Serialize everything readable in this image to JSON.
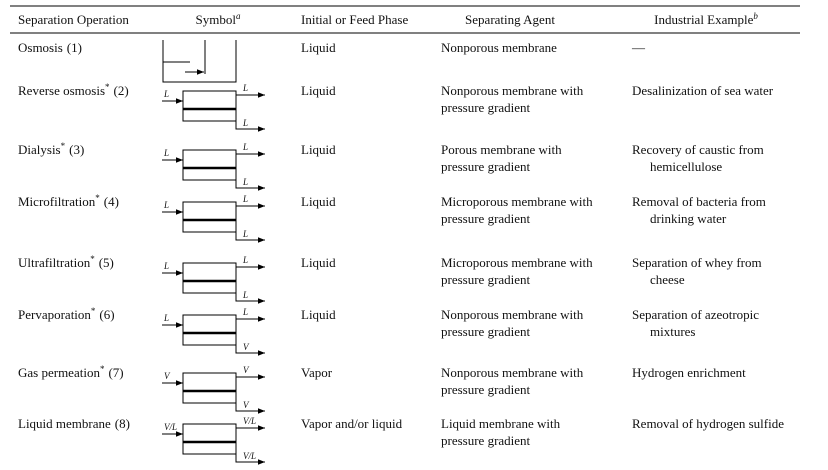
{
  "table": {
    "header": [
      {
        "text": "Separation Operation"
      },
      {
        "text": "Symbol",
        "note": "a"
      },
      {
        "text": "Initial or Feed Phase"
      },
      {
        "text": "Separating Agent"
      },
      {
        "text": "Industrial Example",
        "note": "b"
      }
    ],
    "rows": [
      {
        "operation": "Osmosis",
        "number": "(1)",
        "phase": "Liquid",
        "agent": [
          "Nonporous membrane"
        ],
        "example": [
          "—"
        ]
      },
      {
        "operation": "Reverse osmosis",
        "sup": "*",
        "number": "(2)",
        "symbol": {
          "feed": "L",
          "retentate": "L",
          "permeate": "L"
        },
        "phase": "Liquid",
        "agent": [
          "Nonporous membrane with",
          "pressure gradient"
        ],
        "example": [
          "Desalinization of sea water"
        ]
      },
      {
        "operation": "Dialysis",
        "sup": "*",
        "number": "(3)",
        "symbol": {
          "feed": "L",
          "retentate": "L",
          "permeate": "L"
        },
        "phase": "Liquid",
        "agent": [
          "Porous membrane with",
          "pressure gradient"
        ],
        "example": [
          "Recovery of caustic from",
          "hemicellulose"
        ]
      },
      {
        "operation": "Microfiltration",
        "sup": "*",
        "number": "(4)",
        "symbol": {
          "feed": "L",
          "retentate": "L",
          "permeate": "L"
        },
        "phase": "Liquid",
        "agent": [
          "Microporous membrane with",
          "pressure gradient"
        ],
        "example": [
          "Removal of bacteria from",
          "drinking water"
        ]
      },
      {
        "operation": "Ultrafiltration",
        "sup": "*",
        "number": "(5)",
        "symbol": {
          "feed": "L",
          "retentate": "L",
          "permeate": "L"
        },
        "phase": "Liquid",
        "agent": [
          "Microporous membrane with",
          "pressure gradient"
        ],
        "example": [
          "Separation of whey from",
          "cheese"
        ]
      },
      {
        "operation": "Pervaporation",
        "sup": "*",
        "number": "(6)",
        "symbol": {
          "feed": "L",
          "retentate": "L",
          "permeate": "V"
        },
        "phase": "Liquid",
        "agent": [
          "Nonporous membrane with",
          "pressure gradient"
        ],
        "example": [
          "Separation of azeotropic",
          "mixtures"
        ]
      },
      {
        "operation": "Gas permeation",
        "sup": "*",
        "number": "(7)",
        "symbol": {
          "feed": "V",
          "retentate": "V",
          "permeate": "V"
        },
        "phase": "Vapor",
        "agent": [
          "Nonporous membrane with",
          "pressure gradient"
        ],
        "example": [
          "Hydrogen enrichment"
        ]
      },
      {
        "operation": "Liquid membrane",
        "number": "(8)",
        "symbol": {
          "feed": "V/L",
          "retentate": "V/L",
          "permeate": "V/L"
        },
        "phase": "Vapor and/or liquid",
        "agent": [
          "Liquid membrane with",
          "pressure gradient"
        ],
        "example": [
          "Removal of hydrogen sulfide"
        ]
      }
    ]
  }
}
